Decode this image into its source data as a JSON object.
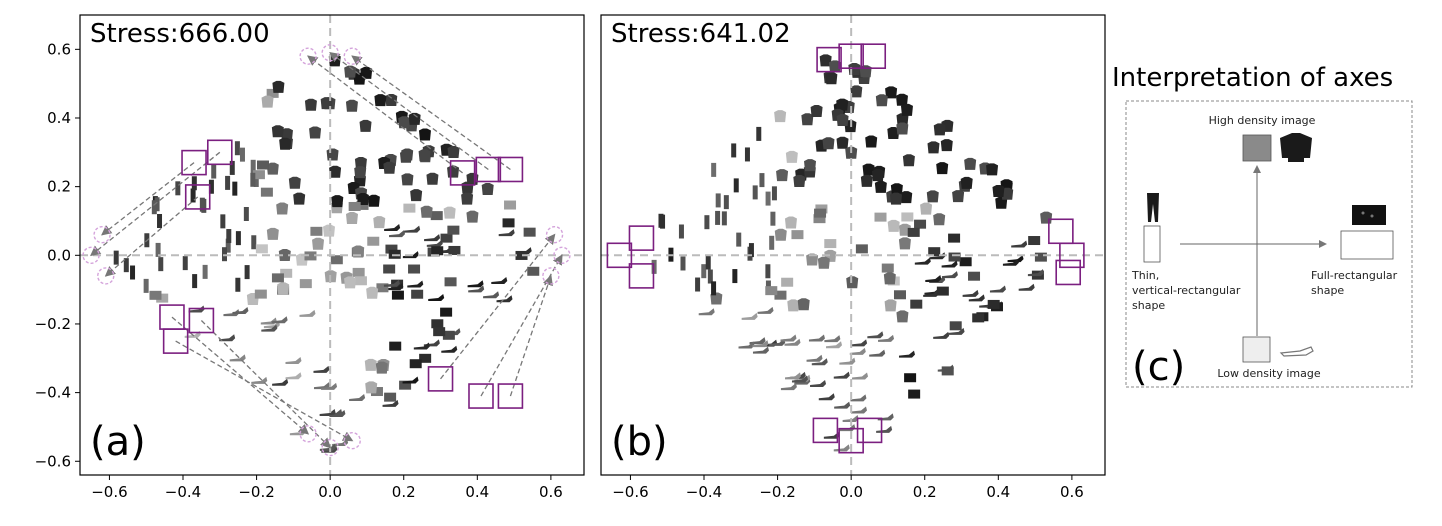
{
  "figure": {
    "panel_c_label": "(c)",
    "legend_title": "Interpretation of axes",
    "legend": {
      "high_density": "High density image",
      "low_density": "Low density image",
      "thin_line1": "Thin,",
      "thin_line2": "vertical-rectangular",
      "thin_line3": "shape",
      "full_line1": "Full-rectangular",
      "full_line2": "shape"
    },
    "colors": {
      "highlight_box": "#7b1f80",
      "dashed_circle": "#d4a3db",
      "arrow": "#777777",
      "origin_line": "#bbbbbb"
    }
  },
  "chart_data": [
    {
      "type": "scatter",
      "panel_label": "(a)",
      "stress_text": "Stress:666.00",
      "xlim": [
        -0.68,
        0.69
      ],
      "ylim": [
        -0.64,
        0.7
      ],
      "xticks": [
        "−0.6",
        "−0.4",
        "−0.2",
        "0.0",
        "0.2",
        "0.4",
        "0.6"
      ],
      "xtick_values": [
        -0.6,
        -0.4,
        -0.2,
        0.0,
        0.2,
        0.4,
        0.6
      ],
      "yticks": [
        "0.6",
        "0.4",
        "0.2",
        "0.0",
        "−0.2",
        "−0.4",
        "−0.6"
      ],
      "ytick_values": [
        0.6,
        0.4,
        0.2,
        0.0,
        -0.2,
        -0.4,
        -0.6
      ],
      "origin_lines": true,
      "highlight_boxes": [
        [
          -0.37,
          0.27
        ],
        [
          -0.3,
          0.3
        ],
        [
          -0.36,
          0.17
        ],
        [
          0.36,
          0.24
        ],
        [
          0.43,
          0.25
        ],
        [
          0.49,
          0.25
        ],
        [
          -0.43,
          -0.18
        ],
        [
          -0.35,
          -0.19
        ],
        [
          -0.42,
          -0.25
        ],
        [
          0.3,
          -0.36
        ],
        [
          0.41,
          -0.41
        ],
        [
          0.49,
          -0.41
        ]
      ],
      "circles": [
        [
          -0.06,
          0.58
        ],
        [
          0.0,
          0.59
        ],
        [
          0.06,
          0.58
        ],
        [
          -0.62,
          0.06
        ],
        [
          -0.65,
          0.0
        ],
        [
          -0.61,
          -0.06
        ],
        [
          -0.06,
          -0.52
        ],
        [
          0.0,
          -0.56
        ],
        [
          0.06,
          -0.54
        ],
        [
          0.61,
          0.06
        ],
        [
          0.63,
          0.0
        ],
        [
          0.6,
          -0.06
        ]
      ],
      "arrows": [
        [
          0.36,
          0.24,
          -0.06,
          0.58
        ],
        [
          0.43,
          0.25,
          0.0,
          0.59
        ],
        [
          0.49,
          0.25,
          0.06,
          0.58
        ],
        [
          -0.37,
          0.27,
          -0.62,
          0.06
        ],
        [
          -0.3,
          0.3,
          -0.65,
          0.0
        ],
        [
          -0.36,
          0.17,
          -0.61,
          -0.06
        ],
        [
          -0.43,
          -0.18,
          -0.06,
          -0.52
        ],
        [
          -0.35,
          -0.19,
          0.0,
          -0.56
        ],
        [
          -0.42,
          -0.25,
          0.06,
          -0.54
        ],
        [
          0.3,
          -0.36,
          0.61,
          0.06
        ],
        [
          0.41,
          -0.41,
          0.63,
          0.0
        ],
        [
          0.49,
          -0.41,
          0.6,
          -0.06
        ]
      ]
    },
    {
      "type": "scatter",
      "panel_label": "(b)",
      "stress_text": "Stress:641.02",
      "xlim": [
        -0.68,
        0.69
      ],
      "ylim": [
        -0.64,
        0.7
      ],
      "xticks": [
        "−0.6",
        "−0.4",
        "−0.2",
        "0.0",
        "0.2",
        "0.4",
        "0.6"
      ],
      "xtick_values": [
        -0.6,
        -0.4,
        -0.2,
        0.0,
        0.2,
        0.4,
        0.6
      ],
      "yticks": [],
      "ytick_values": [],
      "origin_lines": true,
      "highlight_boxes": [
        [
          -0.06,
          0.57
        ],
        [
          0.0,
          0.58
        ],
        [
          0.06,
          0.58
        ],
        [
          -0.57,
          0.05
        ],
        [
          -0.63,
          0.0
        ],
        [
          -0.57,
          -0.06
        ],
        [
          0.57,
          0.07
        ],
        [
          0.6,
          0.0
        ],
        [
          0.59,
          -0.05
        ],
        [
          -0.07,
          -0.51
        ],
        [
          0.0,
          -0.54
        ],
        [
          0.05,
          -0.51
        ]
      ],
      "circles": [],
      "arrows": []
    }
  ]
}
